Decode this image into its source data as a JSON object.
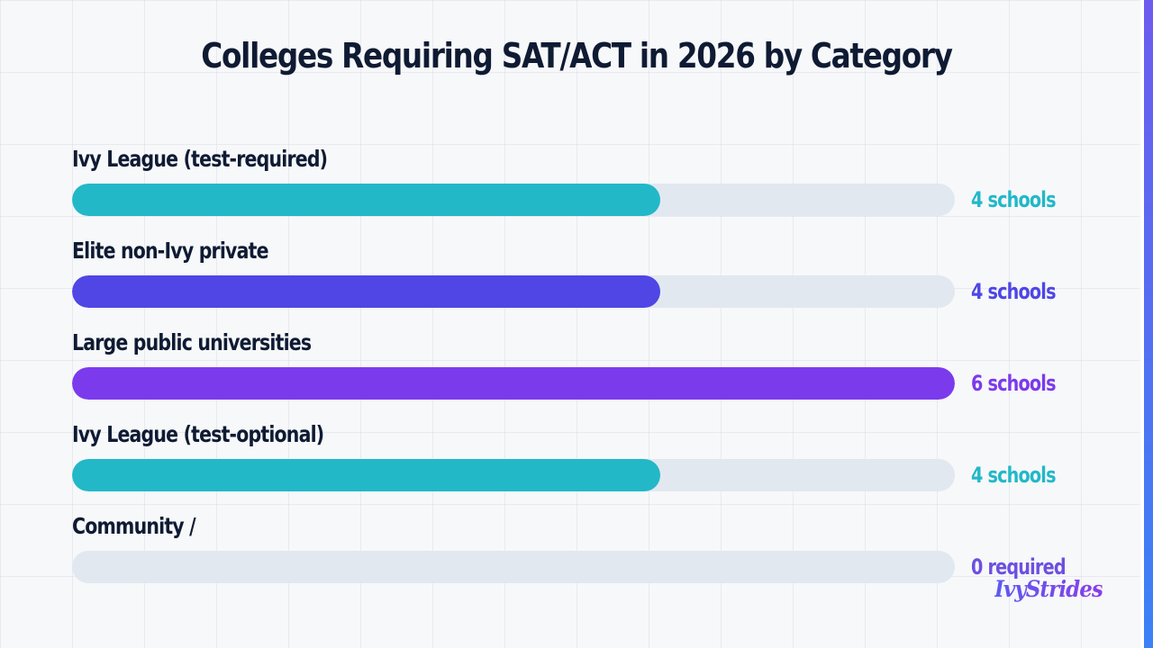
{
  "chart_data": {
    "type": "bar",
    "orientation": "horizontal",
    "title": "Colleges Requiring SAT/ACT in 2026 by Category",
    "xlabel": "",
    "ylabel": "",
    "xlim": [
      0,
      6
    ],
    "grid": true,
    "legend": "none",
    "categories": [
      "Ivy League (test-required)",
      "Elite non-Ivy private",
      "Large public universities",
      "Ivy League (test-optional)",
      "Community /"
    ],
    "values": [
      4,
      4,
      6,
      4,
      0
    ],
    "value_labels": [
      "4 schools",
      "4 schools",
      "6 schools",
      "4 schools",
      "0 required"
    ],
    "colors": [
      "#22b8c8",
      "#4f46e5",
      "#7c3aed",
      "#22b8c8",
      "#6d4fe0"
    ],
    "track_color": "#e2e8f0"
  },
  "branding": {
    "logo_text": "IvyStrides"
  }
}
